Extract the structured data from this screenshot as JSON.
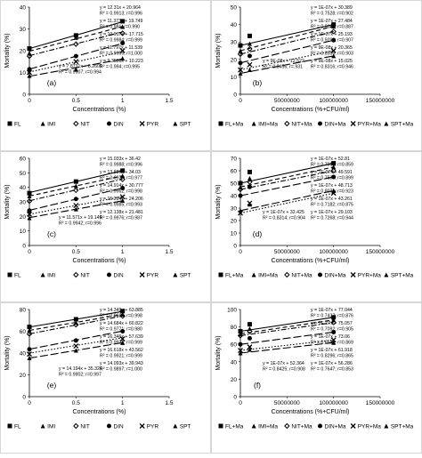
{
  "chart_data": [
    {
      "panel": "(a)",
      "type": "scatter",
      "xlabel": "Concentrations (%)",
      "ylabel": "Mortality (%)",
      "xlim": [
        0,
        1.5
      ],
      "ylim": [
        0,
        40
      ],
      "xticks": [
        0,
        0.5,
        1,
        1.5
      ],
      "yticks": [
        0,
        10,
        20,
        30,
        40
      ],
      "xtick_labels": [
        "0",
        "0.5",
        "1",
        "1.5"
      ],
      "x": [
        0,
        0.5,
        1
      ],
      "series": [
        {
          "name": "FL",
          "marker": "square",
          "dash": "solid",
          "values": [
            21,
            27,
            33.5
          ],
          "slope": 12.31,
          "intercept": 20.964,
          "eq": "y = 12.31x + 20.964",
          "r2": "R² = 0.9913; r=0.996"
        },
        {
          "name": "IMI",
          "marker": "triangle",
          "dash": "dash",
          "values": [
            19,
            26,
            31
          ],
          "slope": 11.373,
          "intercept": 19.749,
          "eq": "y = 11.373x + 19.749",
          "r2": "R² = 0.981; r=0.990"
        },
        {
          "name": "NIT",
          "marker": "diamond",
          "dash": "dashdot",
          "values": [
            17.5,
            23,
            28
          ],
          "slope": 10.917,
          "intercept": 17.715,
          "eq": "y = 10.917x + 17.715",
          "r2": "R² = 0.9984; r=0.999"
        },
        {
          "name": "DIN",
          "marker": "circle",
          "dash": "longdash",
          "values": [
            11.5,
            17.5,
            23.5
          ],
          "slope": 11.797,
          "intercept": 11.539,
          "eq": "y = 11.797x + 11.539",
          "r2": "R² = 0.9999; r=1.000"
        },
        {
          "name": "PYR",
          "marker": "x",
          "dash": "dot",
          "values": [
            10,
            15,
            20
          ],
          "slope": 9.3586,
          "intercept": 10.223,
          "eq": "y = 9.3586x + 10.223",
          "r2": "R² = 0.994; r=0.995"
        },
        {
          "name": "SPT",
          "marker": "triangle",
          "dash": "longdash",
          "values": [
            8.5,
            11.5,
            16.5
          ],
          "slope": 7.8731,
          "intercept": 8.2605,
          "eq": "y = 7.8731x + 8.2605",
          "r2": "R² = 0.9907; r=0.994"
        }
      ]
    },
    {
      "panel": "(b)",
      "type": "scatter",
      "xlabel": "Concentrations (%+CFU/ml)",
      "ylabel": "Mortality (%)",
      "xlim": [
        0,
        150000000
      ],
      "ylim": [
        0,
        50
      ],
      "xticks": [
        0,
        50000000,
        100000000,
        150000000
      ],
      "yticks": [
        0,
        10,
        20,
        30,
        40,
        50
      ],
      "xtick_labels": [
        "0",
        "50000000",
        "100000000",
        "150000000"
      ],
      "x": [
        0,
        10000000,
        100000000
      ],
      "series": [
        {
          "name": "FL+Ma",
          "marker": "square",
          "dash": "solid",
          "values": [
            28,
            33.5,
            40
          ],
          "eq": "y = 1E-07x + 30.389",
          "r2": "R² = 0.7528; r=0.902"
        },
        {
          "name": "IMI+Ma",
          "marker": "triangle",
          "dash": "dash",
          "values": [
            25,
            29,
            39
          ],
          "eq": "y = 1E-07x + 27.484",
          "r2": "R² = 0.9093; r=0.887"
        },
        {
          "name": "NIT+Ma",
          "marker": "diamond",
          "dash": "dashdot",
          "values": [
            23,
            26,
            36
          ],
          "eq": "y = 1E-07x + 25.193",
          "r2": "R² = 0.9298; r=0.907"
        },
        {
          "name": "DIN+Ma",
          "marker": "circle",
          "dash": "longdash",
          "values": [
            18,
            22,
            31
          ],
          "eq": "y = 9E-08x + 20.365",
          "r2": "R² = 0.8555; r=0.903"
        },
        {
          "name": "PYR+Ma",
          "marker": "x",
          "dash": "dot",
          "values": [
            14,
            17,
            25
          ],
          "eq": "y = 9E-08x + 15.025",
          "r2": "R² = 0.8316; r=0.946"
        },
        {
          "name": "SPT+Ma",
          "marker": "triangle",
          "dash": "longdash",
          "values": [
            12,
            14,
            22
          ],
          "eq": "y = 9E-08x + 12.522",
          "r2": "R² = 0.8456; r=.931"
        }
      ]
    },
    {
      "panel": "(c)",
      "type": "scatter",
      "xlabel": "Concentrations (%)",
      "ylabel": "Mortality (%)",
      "xlim": [
        0,
        1.5
      ],
      "ylim": [
        0,
        60
      ],
      "xticks": [
        0,
        0.5,
        1,
        1.5
      ],
      "yticks": [
        0,
        10,
        20,
        30,
        40,
        50,
        60
      ],
      "xtick_labels": [
        "0",
        "0.5",
        "1",
        "1.5"
      ],
      "x": [
        0,
        0.5,
        1
      ],
      "series": [
        {
          "name": "FL",
          "marker": "square",
          "dash": "solid",
          "values": [
            36,
            44,
            51.5
          ],
          "slope": 15.033,
          "intercept": 36.42,
          "eq": "y = 15.033x + 36.42",
          "r2": "R² = 0.9988; r=0.996"
        },
        {
          "name": "IMI",
          "marker": "triangle",
          "dash": "dash",
          "values": [
            34,
            41,
            48
          ],
          "slope": 13.887,
          "intercept": 34.03,
          "eq": "y = 13.887x + 34.03",
          "r2": "R² = 0.9974; r=0.977"
        },
        {
          "name": "NIT",
          "marker": "diamond",
          "dash": "dashdot",
          "values": [
            30.5,
            38,
            45.5
          ],
          "slope": 14.914,
          "intercept": 30.777,
          "eq": "y = 14.914x + 30.777",
          "r2": "R² = 0.9962; r=0.998"
        },
        {
          "name": "DIN",
          "marker": "circle",
          "dash": "longdash",
          "values": [
            24,
            32,
            39.5
          ],
          "slope": 15.284,
          "intercept": 24.206,
          "eq": "y = 15.284x + 24.206",
          "r2": "R² = 0.9985; r=0.993"
        },
        {
          "name": "PYR",
          "marker": "x",
          "dash": "dot",
          "values": [
            21.5,
            27.5,
            33.5
          ],
          "slope": 12.138,
          "intercept": 21.481,
          "eq": "y = 12.138x + 21.481",
          "r2": "R² = 0.9976; r=0.987"
        },
        {
          "name": "SPT",
          "marker": "triangle",
          "dash": "longdash",
          "values": [
            19,
            25,
            31
          ],
          "slope": 11.571,
          "intercept": 19.149,
          "eq": "y = 11.571x + 19.149",
          "r2": "R² = 0.9942; r=0.996"
        }
      ]
    },
    {
      "panel": "(d)",
      "type": "scatter",
      "xlabel": "Concentrations (%+CFU/ml)",
      "ylabel": "Mortality (%)",
      "xlim": [
        0,
        150000000
      ],
      "ylim": [
        0,
        70
      ],
      "xticks": [
        0,
        50000000,
        100000000,
        150000000
      ],
      "yticks": [
        0,
        10,
        20,
        30,
        40,
        50,
        60,
        70
      ],
      "xtick_labels": [
        "0",
        "50000000",
        "100000000",
        "150000000"
      ],
      "x": [
        0,
        10000000,
        100000000
      ],
      "series": [
        {
          "name": "FL+Ma",
          "marker": "square",
          "dash": "solid",
          "values": [
            50,
            59,
            66
          ],
          "eq": "y = 1E-07x + 52.81",
          "r2": "R² = 0.7061; r=0.859"
        },
        {
          "name": "IMI+Ma",
          "marker": "triangle",
          "dash": "dash",
          "values": [
            47,
            54,
            63
          ],
          "eq": "y = 1E-07x + 49.591",
          "r2": "R² = 0.7595; r=0.899"
        },
        {
          "name": "NIT+Ma",
          "marker": "diamond",
          "dash": "dashdot",
          "values": [
            45,
            51,
            60
          ],
          "eq": "y = 1E-07x + 48.713",
          "r2": "R² = 0.8076; r=0.923"
        },
        {
          "name": "DIN+Ma",
          "marker": "circle",
          "dash": "longdash",
          "values": [
            40,
            47,
            55
          ],
          "eq": "y = 1E-07x + 43.261",
          "r2": "R² = 0.7182; r=0.875"
        },
        {
          "name": "PYR+Ma",
          "marker": "x",
          "dash": "dot",
          "values": [
            26,
            34,
            42
          ],
          "eq": "y = 1E-07x + 29.103",
          "r2": "R² = 0.7268; r=0.944"
        },
        {
          "name": "SPT+Ma",
          "marker": "triangle",
          "dash": "longdash",
          "values": [
            28,
            33,
            44
          ],
          "eq": "y = 1E-07x + 32.425",
          "r2": "R² = 0.8314; r=0.904"
        }
      ]
    },
    {
      "panel": "(e)",
      "type": "scatter",
      "xlabel": "Concentrations (%)",
      "ylabel": "Mortality (%)",
      "xlim": [
        0,
        1.5
      ],
      "ylim": [
        0,
        80
      ],
      "xticks": [
        0,
        0.5,
        1,
        1.5
      ],
      "yticks": [
        0,
        20,
        40,
        60,
        80
      ],
      "xtick_labels": [
        "0",
        "0.5",
        "1",
        "1.5"
      ],
      "x": [
        0,
        0.5,
        1
      ],
      "series": [
        {
          "name": "FL",
          "marker": "square",
          "dash": "solid",
          "values": [
            64,
            71,
            78.5
          ],
          "slope": 14.349,
          "intercept": 63.885,
          "eq": "y = 14.349x + 63.885",
          "r2": "R² = 0.9684; r=0.998"
        },
        {
          "name": "IMI",
          "marker": "triangle",
          "dash": "dash",
          "values": [
            61,
            68,
            75.5
          ],
          "slope": 14.684,
          "intercept": 60.822,
          "eq": "y = 14.684x + 60.822",
          "r2": "R² = 0.9771; r=0.980"
        },
        {
          "name": "NIT",
          "marker": "diamond",
          "dash": "dashdot",
          "values": [
            57.5,
            66,
            74
          ],
          "slope": 16.346,
          "intercept": 57.639,
          "eq": "y = 16.346x + 57.639",
          "r2": "R² = 0.9938; r=0.999"
        },
        {
          "name": "DIN",
          "marker": "circle",
          "dash": "longdash",
          "values": [
            43.5,
            51.5,
            60
          ],
          "slope": 16.618,
          "intercept": 43.562,
          "eq": "y = 16.618x + 43.562",
          "r2": "R² = 0.9921; r=0.999"
        },
        {
          "name": "PYR",
          "marker": "x",
          "dash": "dot",
          "values": [
            39,
            46.5,
            53
          ],
          "slope": 14.093,
          "intercept": 39.943,
          "eq": "y = 14.093x + 39.943",
          "r2": "R² = 0.9897; r=1.000"
        },
        {
          "name": "SPT",
          "marker": "triangle",
          "dash": "longdash",
          "values": [
            35.5,
            42.5,
            49.5
          ],
          "slope": 14.194,
          "intercept": 35.326,
          "eq": "y = 14.194x + 35.326",
          "r2": "R² = 0.9902; r=0.997"
        }
      ]
    },
    {
      "panel": "(f)",
      "type": "scatter",
      "xlabel": "Concentrations (%+CFU/ml)",
      "ylabel": "Mortality (%)",
      "xlim": [
        0,
        150000000
      ],
      "ylim": [
        0,
        100
      ],
      "xticks": [
        0,
        50000000,
        100000000,
        150000000
      ],
      "yticks": [
        0,
        20,
        40,
        60,
        80,
        100
      ],
      "xtick_labels": [
        "0",
        "50000000",
        "100000000",
        "150000000"
      ],
      "x": [
        0,
        10000000,
        100000000
      ],
      "series": [
        {
          "name": "FL+Ma",
          "marker": "square",
          "dash": "solid",
          "values": [
            75,
            83,
            91
          ],
          "eq": "y = 1E-07x + 77.044",
          "r2": "R² = 0.7437; r=0.876"
        },
        {
          "name": "IMI+Ma",
          "marker": "triangle",
          "dash": "dash",
          "values": [
            72,
            78,
            88
          ],
          "eq": "y = 1E-07x + 75.057",
          "r2": "R² = 0.7092; r=0.905"
        },
        {
          "name": "NIT+Ma",
          "marker": "diamond",
          "dash": "dashdot",
          "values": [
            70,
            75,
            85
          ],
          "eq": "y = 1E-07x + 73.06",
          "r2": "R² = 0.6565; r=0.869"
        },
        {
          "name": "DIN+Ma",
          "marker": "circle",
          "dash": "longdash",
          "values": [
            60,
            67,
            74
          ],
          "eq": "y = 1E-07x + 61.918",
          "r2": "R² = 0.8296; r=0.865"
        },
        {
          "name": "PYR+Ma",
          "marker": "x",
          "dash": "dot",
          "values": [
            53,
            57,
            65
          ],
          "eq": "y = 1E-07x + 56.286",
          "r2": "R² = 0.7647; r=0.853"
        },
        {
          "name": "SPT+Ma",
          "marker": "triangle",
          "dash": "longdash",
          "values": [
            50,
            54,
            62
          ],
          "eq": "y = 1E-07x + 52.364",
          "r2": "R² = 0.8425; r=0.908"
        }
      ]
    }
  ]
}
